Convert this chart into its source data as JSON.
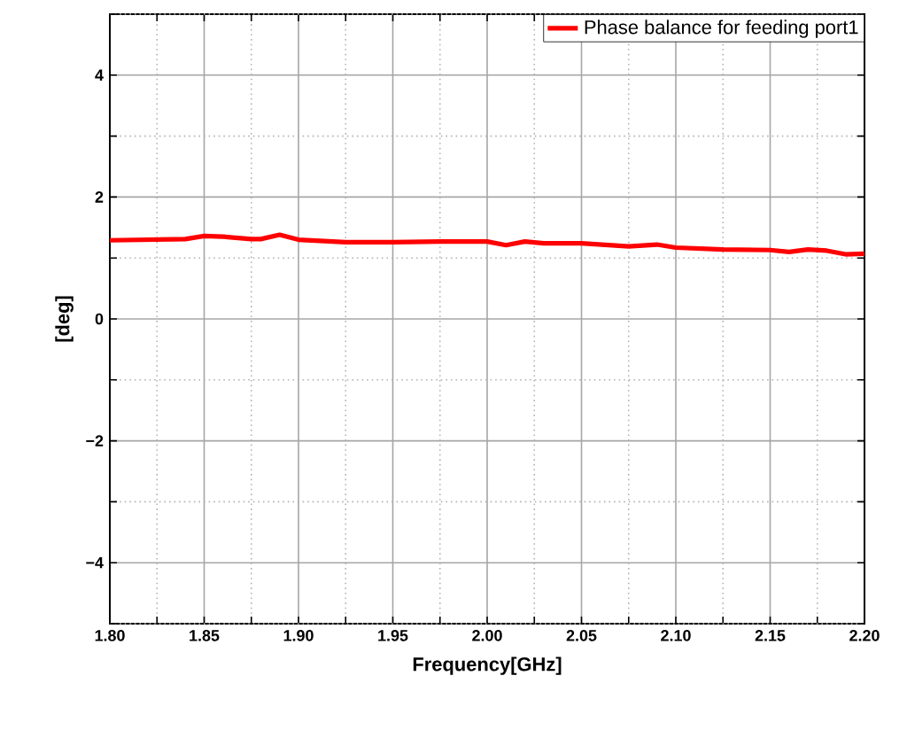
{
  "chart_data": {
    "type": "line",
    "xlabel": "Frequency[GHz]",
    "ylabel": "[deg]",
    "x": [
      1.8,
      1.84,
      1.85,
      1.86,
      1.875,
      1.88,
      1.89,
      1.9,
      1.925,
      1.95,
      1.975,
      2.0,
      2.01,
      2.02,
      2.03,
      2.05,
      2.075,
      2.09,
      2.1,
      2.125,
      2.15,
      2.16,
      2.17,
      2.18,
      2.19,
      2.2
    ],
    "series": [
      {
        "name": "Phase balance for feeding port1",
        "color": "#ff0000",
        "values": [
          1.29,
          1.31,
          1.36,
          1.35,
          1.31,
          1.31,
          1.38,
          1.3,
          1.26,
          1.26,
          1.27,
          1.27,
          1.21,
          1.27,
          1.24,
          1.24,
          1.19,
          1.22,
          1.17,
          1.14,
          1.13,
          1.1,
          1.14,
          1.12,
          1.06,
          1.07
        ]
      }
    ],
    "xlim": [
      1.8,
      2.2
    ],
    "ylim": [
      -5,
      5
    ],
    "xticks": [
      {
        "value": 1.8,
        "label": "1.80"
      },
      {
        "value": 1.825,
        "label": null
      },
      1.85,
      {
        "value": 1.875,
        "label": null
      },
      {
        "value": 1.9,
        "label": "1.90"
      },
      {
        "value": 1.925,
        "label": null
      },
      1.95,
      {
        "value": 1.975,
        "label": null
      },
      {
        "value": 2.0,
        "label": "2.00"
      },
      {
        "value": 2.025,
        "label": null
      },
      2.05,
      {
        "value": 2.075,
        "label": null
      },
      {
        "value": 2.1,
        "label": "2.10"
      },
      {
        "value": 2.125,
        "label": null
      },
      2.15,
      {
        "value": 2.175,
        "label": null
      },
      {
        "value": 2.2,
        "label": "2.20"
      }
    ],
    "yticks": [
      {
        "value": -5,
        "label": null
      },
      {
        "value": -4,
        "label": "−4"
      },
      {
        "value": -3,
        "label": null
      },
      {
        "value": -2,
        "label": "−2"
      },
      {
        "value": -1,
        "label": null
      },
      0,
      {
        "value": 1,
        "label": null
      },
      2,
      {
        "value": 3,
        "label": null
      },
      4,
      {
        "value": 5,
        "label": null
      }
    ],
    "grid": true,
    "legend": "top right",
    "marker": "none",
    "line_style": "solid"
  }
}
